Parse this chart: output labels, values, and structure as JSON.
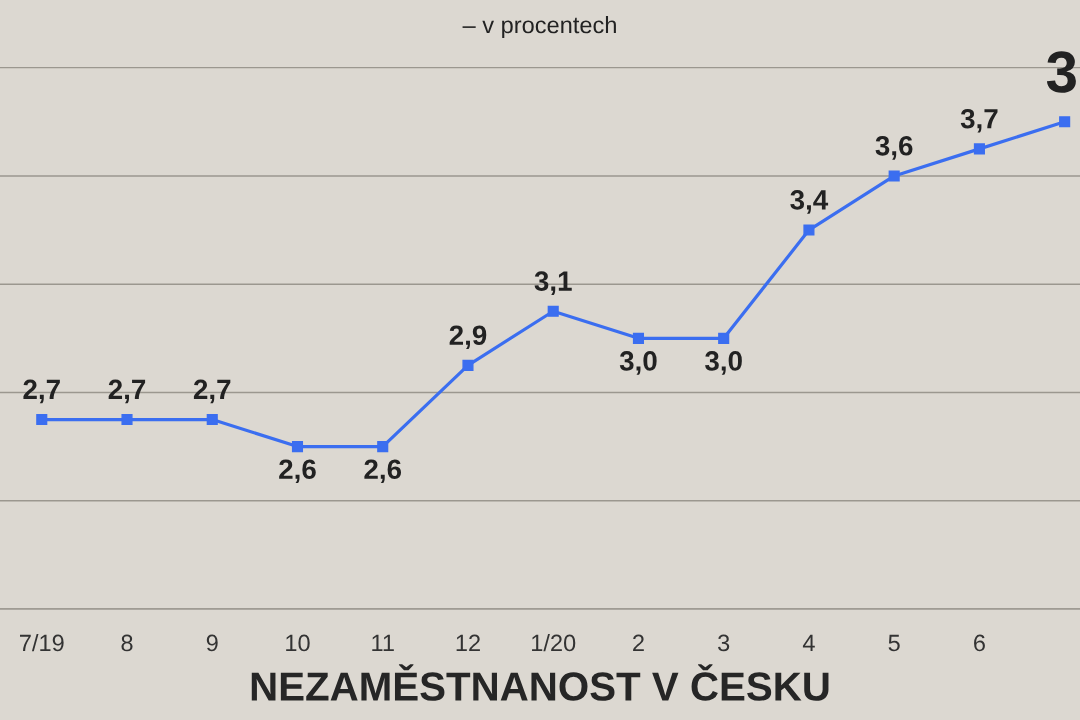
{
  "chart_data": {
    "type": "line",
    "title": "NEZAMĚSTNANOST V ČESKU",
    "subtitle": "– v procentech",
    "categories": [
      "7/19",
      "8",
      "9",
      "10",
      "11",
      "12",
      "1/20",
      "2",
      "3",
      "4",
      "5",
      "6",
      null
    ],
    "values": [
      2.7,
      2.7,
      2.7,
      2.6,
      2.6,
      2.9,
      3.1,
      3.0,
      3.0,
      3.4,
      3.6,
      3.7,
      3.8
    ],
    "value_labels": [
      "2,7",
      "2,7",
      "2,7",
      "2,6",
      "2,6",
      "2,9",
      "3,1",
      "3,0",
      "3,0",
      "3,4",
      "3,6",
      "3,7",
      null
    ],
    "color": "#3b6ef0",
    "marker": "square",
    "line_style": "solid",
    "ylim": [
      2.0,
      4.25
    ],
    "yticks": [
      {
        "value": 2.0,
        "label": null
      },
      {
        "value": 2.4,
        "label": null
      },
      {
        "value": 2.8,
        "label": null
      },
      {
        "value": 3.2,
        "label": null
      },
      {
        "value": 3.6,
        "label": null
      },
      {
        "value": 4.0,
        "label": null
      }
    ],
    "tick_labels": "x",
    "grid": "y",
    "annotations": [
      "3"
    ]
  }
}
